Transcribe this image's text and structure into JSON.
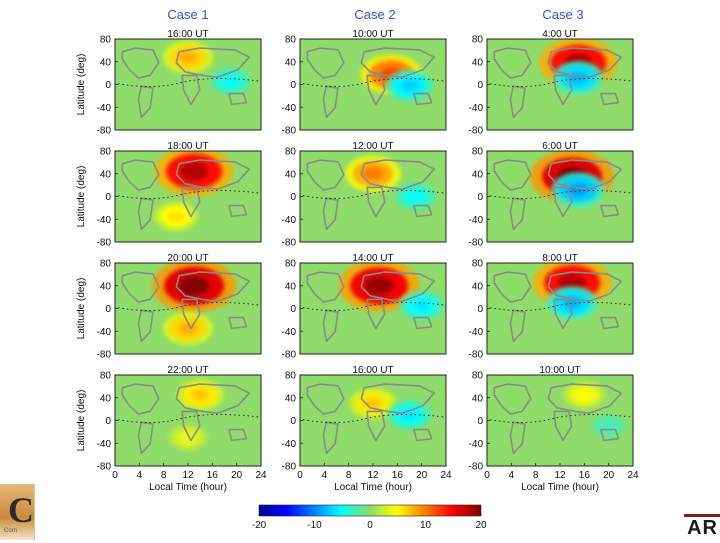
{
  "chart_data": {
    "type": "heatmap",
    "columns": [
      "Case 1",
      "Case 2",
      "Case 3"
    ],
    "panels": [
      [
        "16:00 UT",
        "10:00 UT",
        "4:00 UT"
      ],
      [
        "18:00 UT",
        "12:00 UT",
        "6:00 UT"
      ],
      [
        "20:00 UT",
        "14:00 UT",
        "8:00 UT"
      ],
      [
        "22:00 UT",
        "16:00 UT",
        "10:00 UT"
      ]
    ],
    "hotspots": [
      [
        [
          {
            "x": 12,
            "y": 48,
            "v": 8
          },
          {
            "x": 19,
            "y": 6,
            "v": -5
          }
        ],
        [
          {
            "x": 15,
            "y": 18,
            "v": 12
          },
          {
            "x": 18,
            "y": -2,
            "v": -7
          }
        ],
        [
          {
            "x": 15,
            "y": 38,
            "v": 18
          },
          {
            "x": 15,
            "y": 12,
            "v": -8
          }
        ]
      ],
      [
        [
          {
            "x": 13,
            "y": 44,
            "v": 18
          },
          {
            "x": 10,
            "y": -35,
            "v": 6
          }
        ],
        [
          {
            "x": 12,
            "y": 40,
            "v": 10
          },
          {
            "x": 19,
            "y": 0,
            "v": -5
          }
        ],
        [
          {
            "x": 14,
            "y": 35,
            "v": 20
          },
          {
            "x": 15,
            "y": 12,
            "v": -9
          }
        ]
      ],
      [
        [
          {
            "x": 13,
            "y": 40,
            "v": 20
          },
          {
            "x": 12,
            "y": -35,
            "v": 8
          }
        ],
        [
          {
            "x": 13,
            "y": 40,
            "v": 19
          },
          {
            "x": 20,
            "y": 5,
            "v": -6
          }
        ],
        [
          {
            "x": 14,
            "y": 45,
            "v": 18
          },
          {
            "x": 14,
            "y": 10,
            "v": -8
          }
        ]
      ],
      [
        [
          {
            "x": 14,
            "y": 45,
            "v": 7
          },
          {
            "x": 12,
            "y": -30,
            "v": 4
          }
        ],
        [
          {
            "x": 12,
            "y": 30,
            "v": 7
          },
          {
            "x": 18,
            "y": 10,
            "v": -6
          }
        ],
        [
          {
            "x": 16,
            "y": 45,
            "v": 5
          },
          {
            "x": 20,
            "y": -10,
            "v": -3
          }
        ]
      ]
    ],
    "xlabel": "Local Time (hour)",
    "ylabel": "Latitude (deg)",
    "xlim": [
      0,
      24
    ],
    "ylim": [
      -80,
      80
    ],
    "xticks": [
      "0",
      "4",
      "8",
      "12",
      "16",
      "20",
      "24"
    ],
    "yticks": [
      "80",
      "40",
      "0",
      "-40",
      "-80"
    ],
    "colorbar": {
      "min": -20,
      "max": 20,
      "ticks": [
        "-20",
        "-10",
        "0",
        "10",
        "20"
      ]
    },
    "colors": {
      "title": "#2f55c8",
      "coast": "#8a8a8a",
      "equator": "#222222"
    }
  },
  "logos": {
    "left_letter": "C",
    "left_sub": "Corn",
    "right_text": "AR"
  }
}
